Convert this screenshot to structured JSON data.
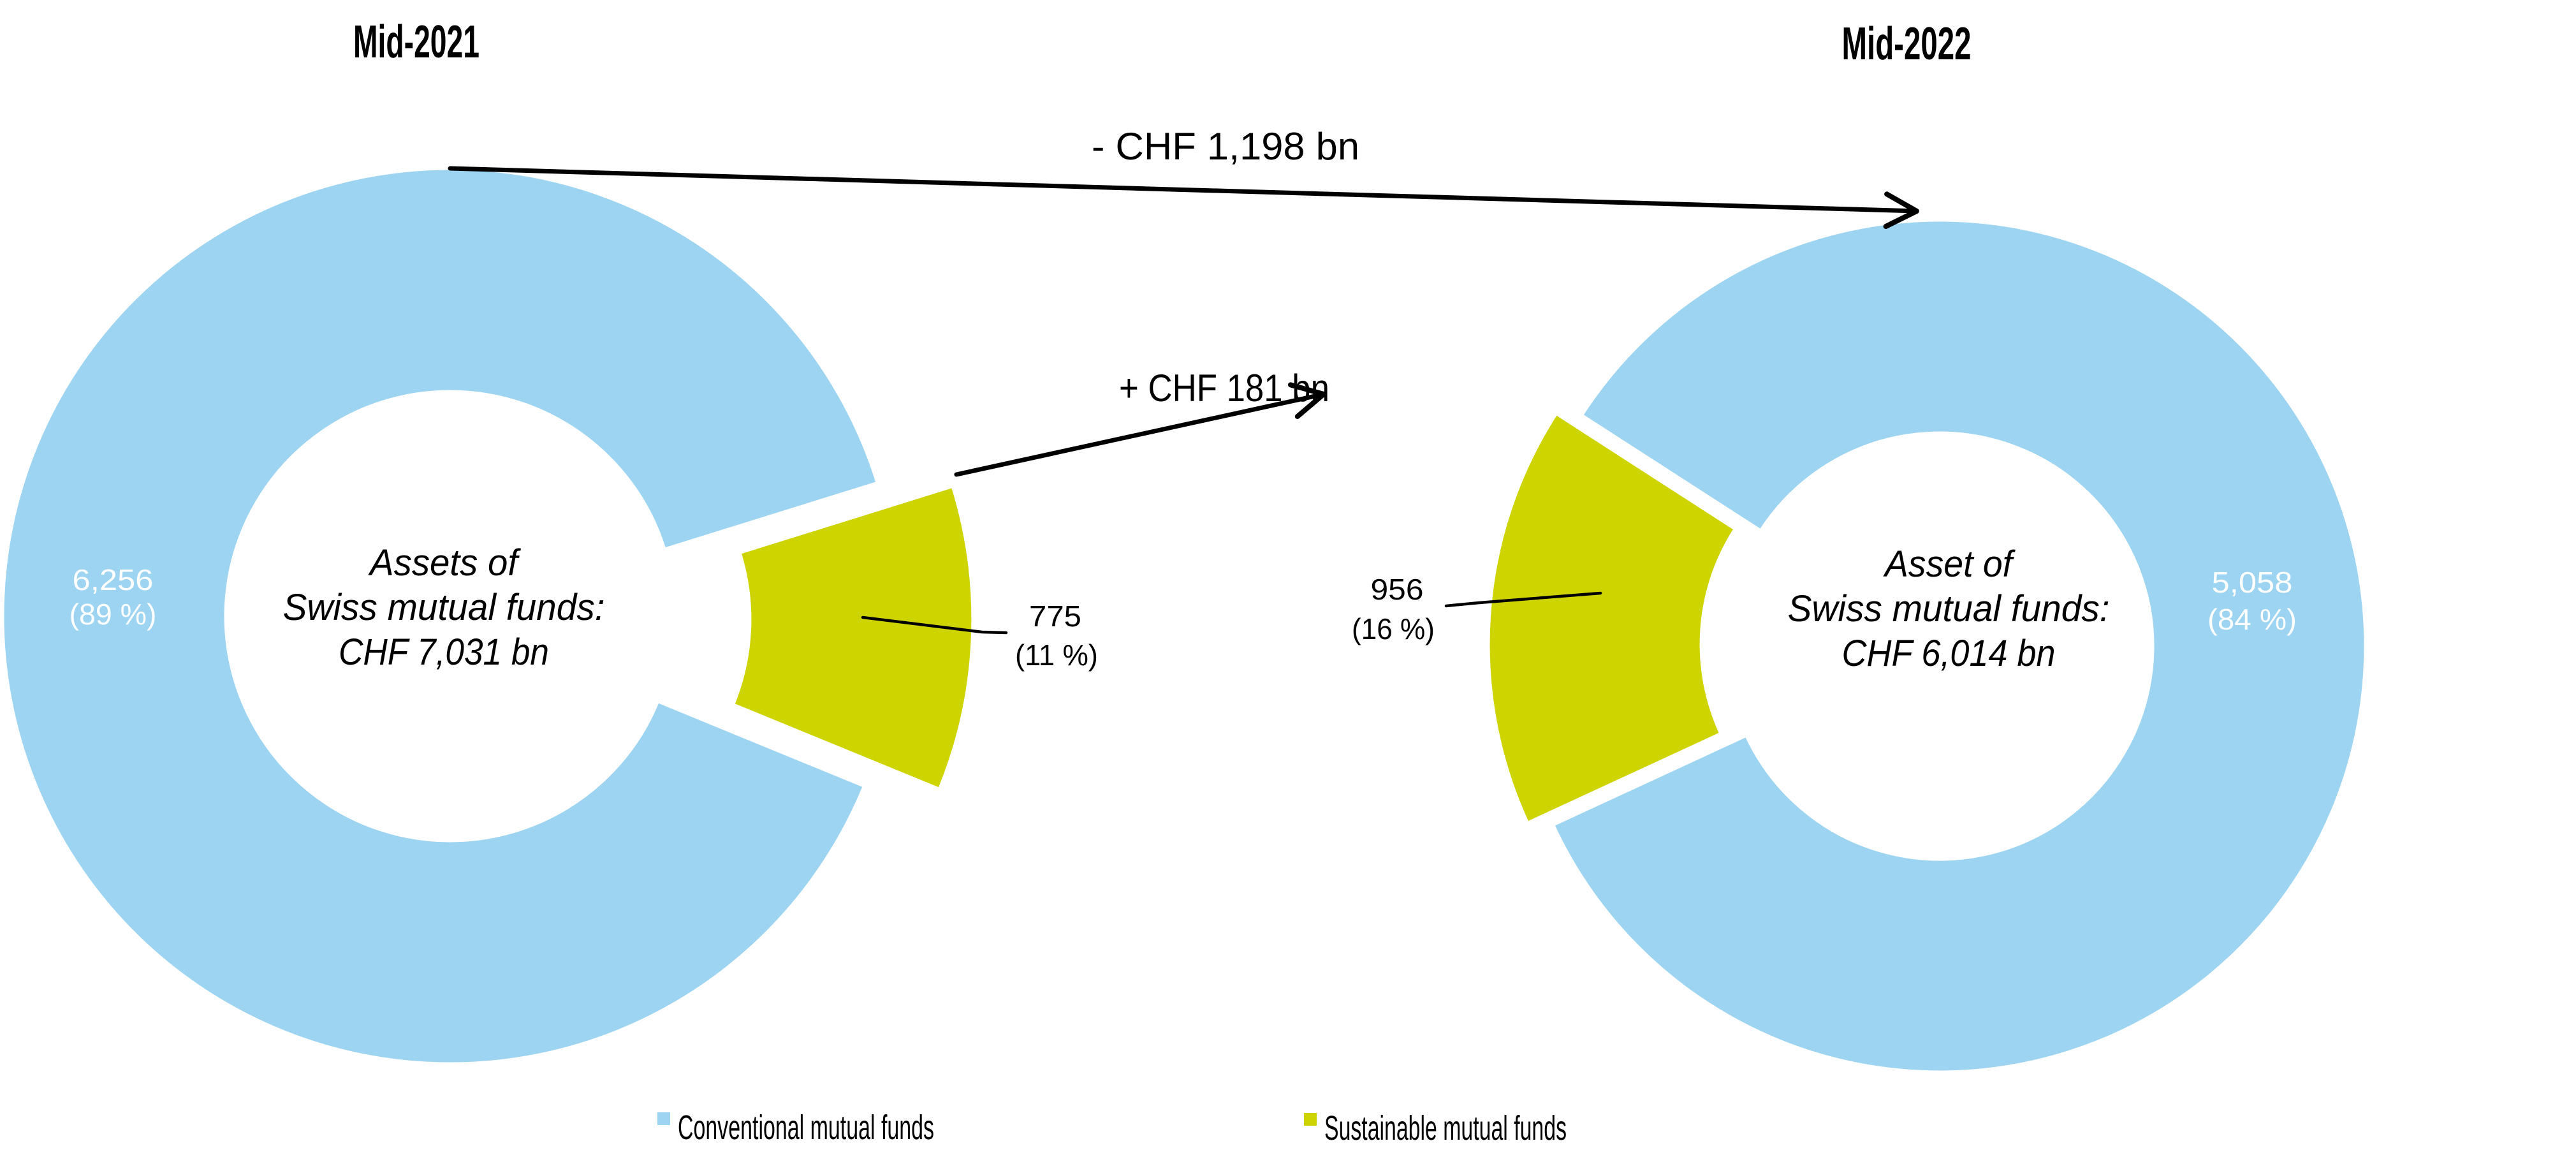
{
  "titles": {
    "left": "Mid-2021",
    "right": "Mid-2022"
  },
  "flow_labels": {
    "conventional_change": "- CHF 1,198 bn",
    "sustainable_change": "+ CHF 181 bn"
  },
  "legend": {
    "items": [
      {
        "label": "Conventional mutual funds",
        "color_key": "conventional"
      },
      {
        "label": "Sustainable mutual funds",
        "color_key": "sustainable"
      }
    ]
  },
  "colors": {
    "conventional": "#9cd4f1",
    "sustainable": "#cdd400",
    "arrow": "#000000",
    "label_on_slice": "#ffffff",
    "text": "#000000"
  },
  "chart_data": [
    {
      "type": "pie",
      "subtype": "exploded-donut",
      "title": "Mid-2021",
      "center_label_lines": [
        "Assets of",
        "Swiss mutual funds:",
        "CHF 7,031 bn"
      ],
      "total_assets_chf_bn": 7031,
      "slices": [
        {
          "name": "Conventional mutual funds",
          "value_chf_bn": 6256,
          "percent": 89,
          "value_label": "6,256",
          "percent_label": "(89 %)"
        },
        {
          "name": "Sustainable mutual funds",
          "value_chf_bn": 775,
          "percent": 11,
          "value_label": "775",
          "percent_label": "(11 %)"
        }
      ]
    },
    {
      "type": "pie",
      "subtype": "exploded-donut",
      "title": "Mid-2022",
      "center_label_lines": [
        "Asset of",
        "Swiss mutual funds:",
        "CHF 6,014 bn"
      ],
      "total_assets_chf_bn": 6014,
      "slices": [
        {
          "name": "Conventional mutual funds",
          "value_chf_bn": 5058,
          "percent": 84,
          "value_label": "5,058",
          "percent_label": "(84 %)"
        },
        {
          "name": "Sustainable mutual funds",
          "value_chf_bn": 956,
          "percent": 16,
          "value_label": "956",
          "percent_label": "(16 %)"
        }
      ]
    }
  ]
}
